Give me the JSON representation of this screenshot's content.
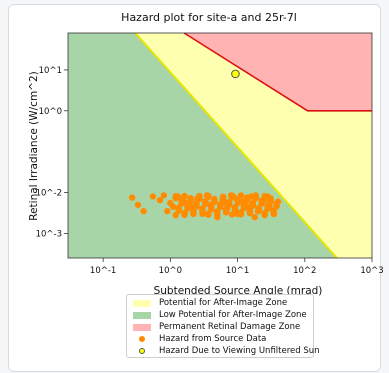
{
  "chart_data": {
    "type": "scatter",
    "title": "Hazard plot for site-a and 25r-7l",
    "xlabel": "Subtended Source Angle (mrad)",
    "ylabel": "Retinal Irradiance (W/cm^2)",
    "xscale": "log",
    "yscale": "log",
    "xlim": [
      0.03,
      1000
    ],
    "ylim": [
      0.00025,
      80
    ],
    "x_tick_labels": [
      "10^-1",
      "10^0",
      "10^1",
      "10^2",
      "10^3"
    ],
    "y_tick_labels": [
      "10^-3",
      "10^-2",
      "10^0",
      "10^1"
    ],
    "x_ticks": [
      0.1,
      1,
      10,
      100,
      1000
    ],
    "y_ticks": [
      0.001,
      0.01,
      1,
      10
    ],
    "zones": [
      {
        "name": "Potential for After-Image Zone",
        "color": "#ffffb0"
      },
      {
        "name": "Low Potential for After-Image Zone",
        "color": "#a8d5a8"
      },
      {
        "name": "Permanent Retinal Damage Zone",
        "color": "#ffb3b3"
      }
    ],
    "boundaries": {
      "after_image_line": {
        "color": "#e6e600",
        "points": [
          [
            0.3,
            80
          ],
          [
            300,
            0.00025
          ]
        ]
      },
      "damage_line": {
        "color": "#dd1111",
        "points": [
          [
            1.6,
            80
          ],
          [
            110,
            1
          ],
          [
            1000,
            1
          ]
        ]
      }
    },
    "series": [
      {
        "name": "Hazard from Source Data",
        "color": "#ff8c00",
        "points": [
          [
            0.27,
            0.0075
          ],
          [
            0.33,
            0.005
          ],
          [
            0.4,
            0.0035
          ],
          [
            0.55,
            0.008
          ],
          [
            0.7,
            0.0065
          ],
          [
            0.9,
            0.0035
          ],
          [
            1.1,
            0.0045
          ],
          [
            1.3,
            0.008
          ],
          [
            1.6,
            0.006
          ],
          [
            2.0,
            0.0045
          ],
          [
            2.5,
            0.007
          ],
          [
            3.0,
            0.003
          ],
          [
            3.5,
            0.0085
          ],
          [
            4.0,
            0.005
          ],
          [
            5.0,
            0.0025
          ],
          [
            6.0,
            0.007
          ],
          [
            7.0,
            0.004
          ],
          [
            8.0,
            0.0085
          ],
          [
            10.0,
            0.003
          ],
          [
            12.0,
            0.006
          ],
          [
            14.0,
            0.0045
          ],
          [
            16.0,
            0.008
          ],
          [
            20.0,
            0.0035
          ],
          [
            25.0,
            0.0065
          ],
          [
            30.0,
            0.0045
          ],
          [
            35.0,
            0.003
          ],
          [
            40.0,
            0.006
          ],
          [
            0.8,
            0.0085
          ],
          [
            1.0,
            0.0055
          ],
          [
            2.2,
            0.003
          ],
          [
            6.5,
            0.0055
          ],
          [
            9.0,
            0.0075
          ],
          [
            18.0,
            0.0025
          ],
          [
            28.0,
            0.008
          ]
        ]
      },
      {
        "name": "Hazard Due to Viewing Unfiltered Sun",
        "color": "#ffff00",
        "edge": "#555555",
        "points": [
          [
            9.3,
            8.0
          ]
        ]
      }
    ],
    "legend_position": "bottom"
  }
}
